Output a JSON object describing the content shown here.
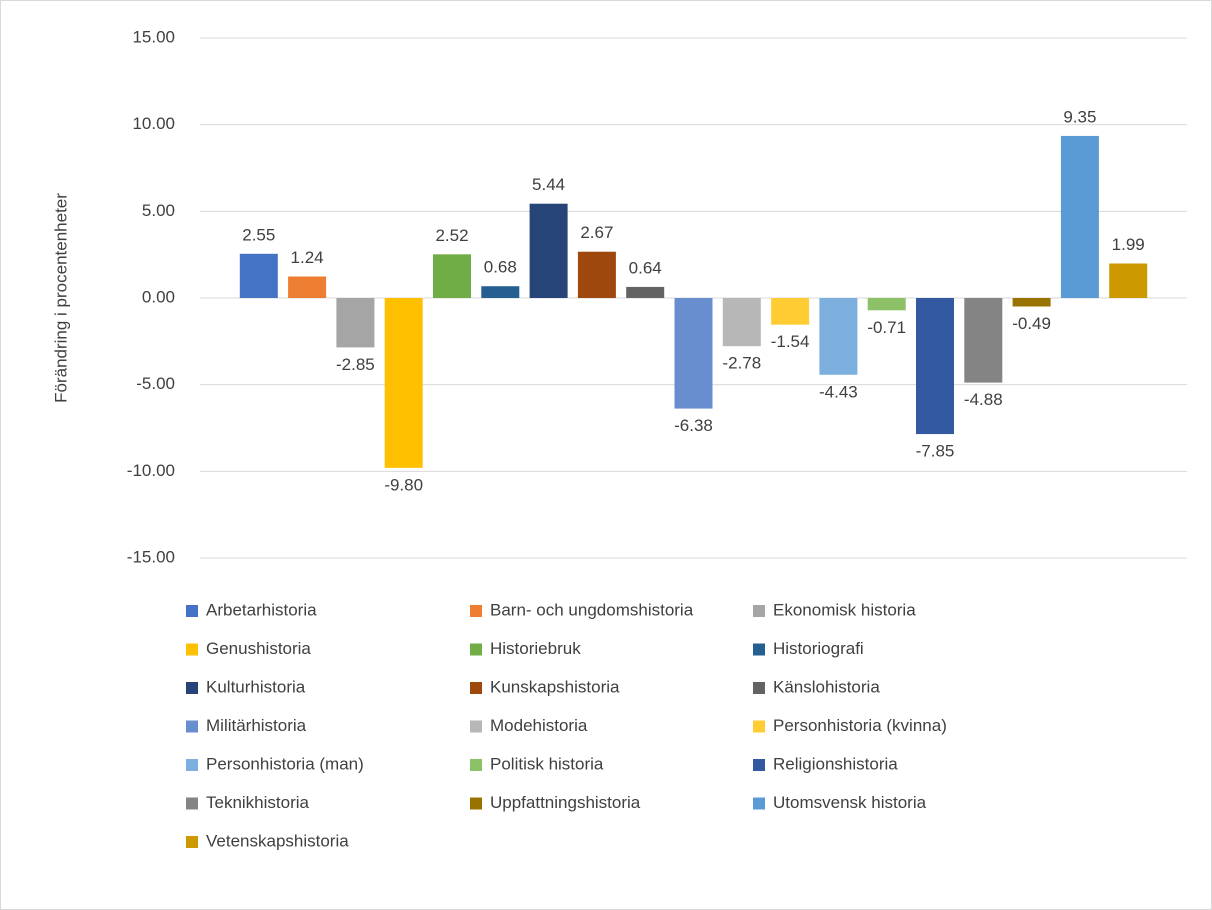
{
  "chart_data": {
    "type": "bar",
    "y_label": "Förändring i procentenheter",
    "ylim": [
      -15,
      15
    ],
    "yticks": [
      {
        "value": -15,
        "label": "-15.00"
      },
      {
        "value": -10,
        "label": "-10.00"
      },
      {
        "value": -5,
        "label": "-5.00"
      },
      {
        "value": 0,
        "label": "0.00"
      },
      {
        "value": 5,
        "label": "5.00"
      },
      {
        "value": 10,
        "label": "10.00"
      },
      {
        "value": 15,
        "label": "15.00"
      }
    ],
    "grid": true,
    "legend": "bottom",
    "series": [
      {
        "name": "Arbetarhistoria",
        "color": "#4472c4",
        "values": [
          2.55
        ],
        "value_labels": [
          "2.55"
        ]
      },
      {
        "name": "Barn- och ungdomshistoria",
        "color": "#ed7d31",
        "values": [
          1.24
        ],
        "value_labels": [
          "1.24"
        ]
      },
      {
        "name": "Ekonomisk historia",
        "color": "#a5a5a5",
        "values": [
          -2.85
        ],
        "value_labels": [
          "-2.85"
        ]
      },
      {
        "name": "Genushistoria",
        "color": "#ffc000",
        "values": [
          -9.8
        ],
        "value_labels": [
          "-9.80"
        ]
      },
      {
        "name": "Historiebruk",
        "color": "#70ad47",
        "values": [
          2.52
        ],
        "value_labels": [
          "2.52"
        ]
      },
      {
        "name": "Historiografi",
        "color": "#255e91",
        "values": [
          0.68
        ],
        "value_labels": [
          "0.68"
        ]
      },
      {
        "name": "Kulturhistoria",
        "color": "#264478",
        "values": [
          5.44
        ],
        "value_labels": [
          "5.44"
        ]
      },
      {
        "name": "Kunskapshistoria",
        "color": "#9e480e",
        "values": [
          2.67
        ],
        "value_labels": [
          "2.67"
        ]
      },
      {
        "name": "Känslohistoria",
        "color": "#636363",
        "values": [
          0.64
        ],
        "value_labels": [
          "0.64"
        ]
      },
      {
        "name": "Militärhistoria",
        "color": "#698ed0",
        "values": [
          -6.38
        ],
        "value_labels": [
          "-6.38"
        ]
      },
      {
        "name": "Modehistoria",
        "color": "#b7b7b7",
        "values": [
          -2.78
        ],
        "value_labels": [
          "-2.78"
        ]
      },
      {
        "name": "Personhistoria (kvinna)",
        "color": "#ffcd33",
        "values": [
          -1.54
        ],
        "value_labels": [
          "-1.54"
        ]
      },
      {
        "name": "Personhistoria (man)",
        "color": "#7cafdd",
        "values": [
          -4.43
        ],
        "value_labels": [
          "-4.43"
        ]
      },
      {
        "name": "Politisk historia",
        "color": "#8cc168",
        "values": [
          -0.71
        ],
        "value_labels": [
          "-0.71"
        ]
      },
      {
        "name": "Religionshistoria",
        "color": "#335aa1",
        "values": [
          -7.85
        ],
        "value_labels": [
          "-7.85"
        ]
      },
      {
        "name": "Teknikhistoria",
        "color": "#848484",
        "values": [
          -4.88
        ],
        "value_labels": [
          "-4.88"
        ]
      },
      {
        "name": "Uppfattningshistoria",
        "color": "#997300",
        "values": [
          -0.49
        ],
        "value_labels": [
          "-0.49"
        ]
      },
      {
        "name": "Utomsvensk historia",
        "color": "#5b9bd5",
        "values": [
          9.35
        ],
        "value_labels": [
          "9.35"
        ]
      },
      {
        "name": "Vetenskapshistoria",
        "color": "#cc9a00",
        "values": [
          1.99
        ],
        "value_labels": [
          "1.99"
        ]
      }
    ]
  }
}
